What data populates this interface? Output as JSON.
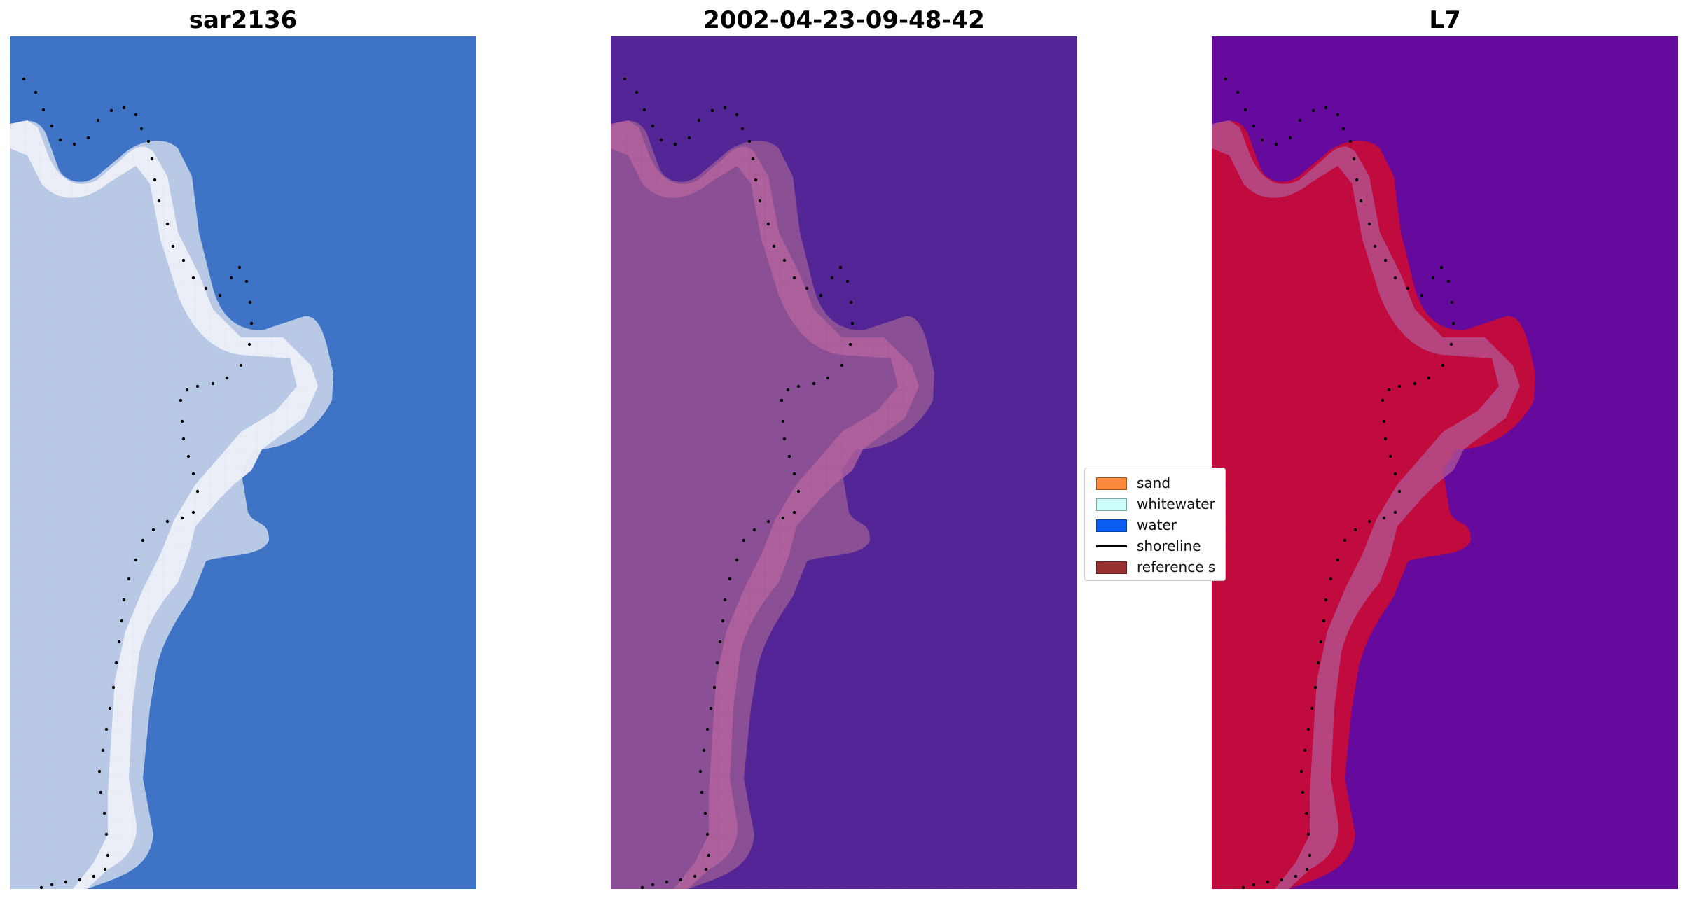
{
  "panels": [
    {
      "title": "sar2136",
      "image": "true-color-rgb-satellite-tile",
      "colors": {
        "land": "#b8c9e6",
        "beach": "#eef0f8",
        "water": "#3f73c6"
      }
    },
    {
      "title": "2002-04-23-09-48-42",
      "image": "classified-water-index-tile",
      "colors": {
        "land": "#8a4f94",
        "beach": "#b8659e",
        "water": "#542596"
      }
    },
    {
      "title": "L7",
      "image": "mndwi-index-tile",
      "colors": {
        "land": "#c10a3e",
        "beach": "#b15895",
        "water": "#660a9e"
      }
    }
  ],
  "legend": {
    "items": [
      {
        "label": "sand",
        "color": "#fb8a3c",
        "kind": "patch"
      },
      {
        "label": "whitewater",
        "color": "#ccfff9",
        "kind": "patch"
      },
      {
        "label": "water",
        "color": "#0a5df0",
        "kind": "patch"
      },
      {
        "label": "shoreline",
        "color": "#000000",
        "kind": "line"
      },
      {
        "label": "reference s",
        "color": "#993030",
        "kind": "patch"
      }
    ]
  }
}
